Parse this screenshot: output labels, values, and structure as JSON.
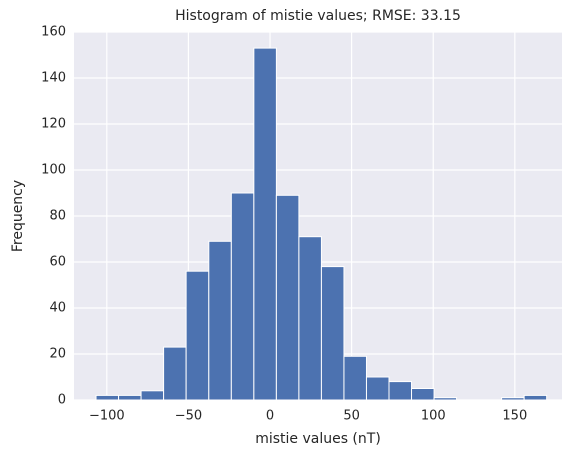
{
  "chart_data": {
    "type": "histogram",
    "title": "Histogram of mistie values; RMSE: 33.15",
    "xlabel": "mistie values (nT)",
    "ylabel": "Frequency",
    "bins": [
      -106.6,
      -92.8,
      -79.0,
      -65.2,
      -51.4,
      -37.5,
      -23.7,
      -9.9,
      3.9,
      17.7,
      31.5,
      45.3,
      59.1,
      72.9,
      86.7,
      100.5,
      114.3,
      128.1,
      141.9,
      155.7,
      169.5
    ],
    "values": [
      2,
      2,
      4,
      23,
      56,
      69,
      90,
      153,
      89,
      71,
      58,
      19,
      10,
      8,
      5,
      1,
      0,
      0,
      1,
      2
    ],
    "color": "#4c72b0",
    "xlim": [
      -120.1,
      178.9
    ],
    "ylim": [
      0,
      160
    ],
    "xticks": [
      {
        "value": -100,
        "label": "−100"
      },
      {
        "value": -50,
        "label": "−50"
      },
      0,
      50,
      100,
      150
    ],
    "yticks": [
      0,
      20,
      40,
      60,
      80,
      100,
      120,
      140,
      160
    ],
    "grid": true
  }
}
